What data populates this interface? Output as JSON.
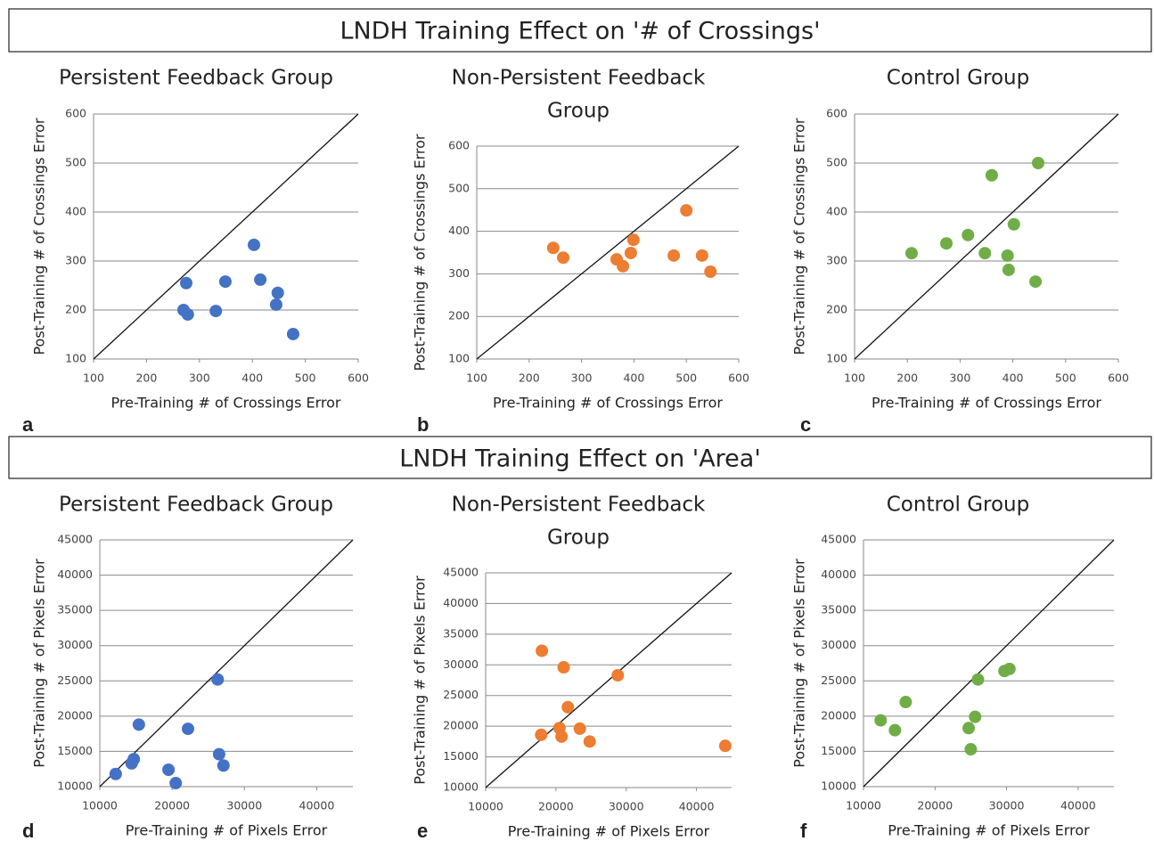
{
  "sections": [
    {
      "title": "LNDH Training Effect on '# of Crossings'"
    },
    {
      "title": "LNDH Training Effect on 'Area'"
    }
  ],
  "chart_data": [
    {
      "type": "scatter",
      "panel": "a",
      "title": [
        "Persistent Feedback Group"
      ],
      "xlabel": "Pre-Training # of Crossings Error",
      "ylabel": "Post-Training # of Crossings Error",
      "color": "#4472c4",
      "identity_line": true,
      "grid": true,
      "x": [
        275,
        270,
        278,
        331,
        349,
        403,
        415,
        448,
        445,
        477
      ],
      "values": [
        255,
        200,
        191,
        198,
        258,
        333,
        262,
        235,
        211,
        151
      ],
      "xlim": [
        100,
        600
      ],
      "ylim": [
        100,
        600
      ],
      "xticks": [
        100,
        200,
        300,
        400,
        500,
        600
      ],
      "yticks": [
        100,
        200,
        300,
        400,
        500,
        600
      ]
    },
    {
      "type": "scatter",
      "panel": "b",
      "title": [
        "Non-Persistent Feedback",
        "Group"
      ],
      "xlabel": "Pre-Training # of Crossings Error",
      "ylabel": "Post-Training # of Crossings Error",
      "color": "#ed7d31",
      "identity_line": true,
      "grid": true,
      "x": [
        246,
        265,
        367,
        379,
        394,
        399,
        476,
        500,
        530,
        546
      ],
      "values": [
        361,
        338,
        334,
        318,
        349,
        380,
        343,
        449,
        343,
        305
      ],
      "xlim": [
        100,
        600
      ],
      "ylim": [
        100,
        600
      ],
      "xticks": [
        100,
        200,
        300,
        400,
        500,
        600
      ],
      "yticks": [
        100,
        200,
        300,
        400,
        500,
        600
      ]
    },
    {
      "type": "scatter",
      "panel": "c",
      "title": [
        "Control Group"
      ],
      "xlabel": "Pre-Training # of Crossings Error",
      "ylabel": "Post-Training # of Crossings Error",
      "color": "#70ad47",
      "identity_line": true,
      "grid": true,
      "x": [
        208,
        274,
        315,
        347,
        360,
        402,
        448,
        390,
        392,
        443
      ],
      "values": [
        316,
        336,
        353,
        316,
        475,
        375,
        500,
        311,
        282,
        258
      ],
      "xlim": [
        100,
        600
      ],
      "ylim": [
        100,
        600
      ],
      "xticks": [
        100,
        200,
        300,
        400,
        500,
        600
      ],
      "yticks": [
        100,
        200,
        300,
        400,
        500,
        600
      ]
    },
    {
      "type": "scatter",
      "panel": "d",
      "title": [
        "Persistent Feedback Group"
      ],
      "xlabel": "Pre-Training # of Pixels Error",
      "ylabel": "Post-Training # of Pixels Error",
      "color": "#4472c4",
      "identity_line": true,
      "grid": true,
      "x": [
        12200,
        14400,
        14700,
        15400,
        19500,
        20500,
        22200,
        26300,
        26500,
        27100
      ],
      "values": [
        11800,
        13300,
        13900,
        18800,
        12400,
        10500,
        18200,
        25200,
        14600,
        13000
      ],
      "xlim": [
        10000,
        45000
      ],
      "ylim": [
        10000,
        45000
      ],
      "xticks": [
        10000,
        20000,
        30000,
        40000
      ],
      "yticks": [
        10000,
        15000,
        20000,
        25000,
        30000,
        35000,
        40000,
        45000
      ]
    },
    {
      "type": "scatter",
      "panel": "e",
      "title": [
        "Non-Persistent Feedback",
        "Group"
      ],
      "xlabel": "Pre-Training # of Pixels Error",
      "ylabel": "Post-Training # of Pixels Error",
      "color": "#ed7d31",
      "identity_line": true,
      "grid": true,
      "x": [
        18000,
        17900,
        20500,
        20800,
        21100,
        21700,
        23400,
        24800,
        28800,
        44100
      ],
      "values": [
        32300,
        18600,
        19700,
        18300,
        29600,
        23100,
        19600,
        17500,
        28300,
        16800
      ],
      "xlim": [
        10000,
        45000
      ],
      "ylim": [
        10000,
        45000
      ],
      "xticks": [
        10000,
        20000,
        30000,
        40000
      ],
      "yticks": [
        10000,
        15000,
        20000,
        25000,
        30000,
        35000,
        40000,
        45000
      ]
    },
    {
      "type": "scatter",
      "panel": "f",
      "title": [
        "Control Group"
      ],
      "xlabel": "Pre-Training # of Pixels Error",
      "ylabel": "Post-Training # of Pixels Error",
      "color": "#70ad47",
      "identity_line": true,
      "grid": true,
      "x": [
        12400,
        14400,
        15900,
        24700,
        25000,
        25600,
        26000,
        29700,
        30400
      ],
      "values": [
        19400,
        18000,
        22000,
        18300,
        15300,
        19900,
        25200,
        26400,
        26700
      ],
      "xlim": [
        10000,
        45000
      ],
      "ylim": [
        10000,
        45000
      ],
      "xticks": [
        10000,
        20000,
        30000,
        40000
      ],
      "yticks": [
        10000,
        15000,
        20000,
        25000,
        30000,
        35000,
        40000,
        45000
      ]
    }
  ]
}
